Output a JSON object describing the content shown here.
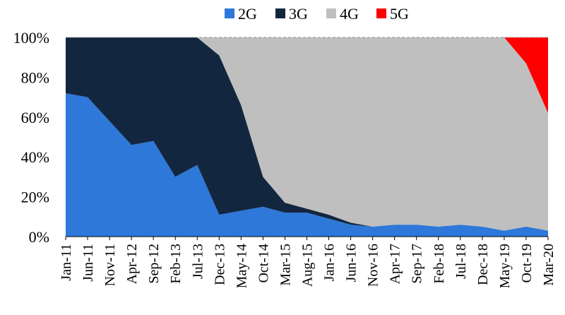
{
  "chart_data": {
    "type": "area",
    "stacked": true,
    "normalized_percent": true,
    "ylim": [
      0,
      100
    ],
    "y_ticks": [
      "0%",
      "20%",
      "40%",
      "60%",
      "80%",
      "100%"
    ],
    "x_tick_labels": [
      "Jan-11",
      "Jun-11",
      "Nov-11",
      "Apr-12",
      "Sep-12",
      "Feb-13",
      "Jul-13",
      "Dec-13",
      "May-14",
      "Oct-14",
      "Mar-15",
      "Aug-15",
      "Jan-16",
      "Jun-16",
      "Nov-16",
      "Apr-17",
      "Sep-17",
      "Feb-18",
      "Jul-18",
      "Dec-18",
      "May-19",
      "Oct-19",
      "Mar-20"
    ],
    "legend_position": "top",
    "top_gridline_dashed": true,
    "series": [
      {
        "name": "2G",
        "color": "#2e78d9"
      },
      {
        "name": "3G",
        "color": "#13263f"
      },
      {
        "name": "4G",
        "color": "#bfbfbf"
      },
      {
        "name": "5G",
        "color": "#ff0000"
      }
    ],
    "points": [
      {
        "x": "Jan-11",
        "g2": 72,
        "g3": 28,
        "g4": 0,
        "g5": 0
      },
      {
        "x": "Jun-11",
        "g2": 70,
        "g3": 30,
        "g4": 0,
        "g5": 0
      },
      {
        "x": "Nov-11",
        "g2": 58,
        "g3": 42,
        "g4": 0,
        "g5": 0
      },
      {
        "x": "Apr-12",
        "g2": 46,
        "g3": 54,
        "g4": 0,
        "g5": 0
      },
      {
        "x": "Sep-12",
        "g2": 48,
        "g3": 52,
        "g4": 0,
        "g5": 0
      },
      {
        "x": "Feb-13",
        "g2": 30,
        "g3": 70,
        "g4": 0,
        "g5": 0
      },
      {
        "x": "Jul-13",
        "g2": 36,
        "g3": 64,
        "g4": 0,
        "g5": 0
      },
      {
        "x": "Dec-13",
        "g2": 11,
        "g3": 80,
        "g4": 9,
        "g5": 0
      },
      {
        "x": "May-14",
        "g2": 13,
        "g3": 53,
        "g4": 34,
        "g5": 0
      },
      {
        "x": "Oct-14",
        "g2": 15,
        "g3": 15,
        "g4": 70,
        "g5": 0
      },
      {
        "x": "Mar-15",
        "g2": 12,
        "g3": 5,
        "g4": 83,
        "g5": 0
      },
      {
        "x": "Aug-15",
        "g2": 12,
        "g3": 2,
        "g4": 86,
        "g5": 0
      },
      {
        "x": "Jan-16",
        "g2": 9,
        "g3": 2,
        "g4": 89,
        "g5": 0
      },
      {
        "x": "Jun-16",
        "g2": 6,
        "g3": 1,
        "g4": 93,
        "g5": 0
      },
      {
        "x": "Nov-16",
        "g2": 5,
        "g3": 0,
        "g4": 95,
        "g5": 0
      },
      {
        "x": "Apr-17",
        "g2": 6,
        "g3": 0,
        "g4": 94,
        "g5": 0
      },
      {
        "x": "Sep-17",
        "g2": 6,
        "g3": 0,
        "g4": 94,
        "g5": 0
      },
      {
        "x": "Feb-18",
        "g2": 5,
        "g3": 0,
        "g4": 95,
        "g5": 0
      },
      {
        "x": "Jul-18",
        "g2": 6,
        "g3": 0,
        "g4": 94,
        "g5": 0
      },
      {
        "x": "Dec-18",
        "g2": 5,
        "g3": 0,
        "g4": 95,
        "g5": 0
      },
      {
        "x": "May-19",
        "g2": 3,
        "g3": 0,
        "g4": 97,
        "g5": 0
      },
      {
        "x": "Oct-19",
        "g2": 5,
        "g3": 0,
        "g4": 82,
        "g5": 13
      },
      {
        "x": "Mar-20",
        "g2": 3,
        "g3": 0,
        "g4": 59,
        "g5": 38
      }
    ]
  }
}
